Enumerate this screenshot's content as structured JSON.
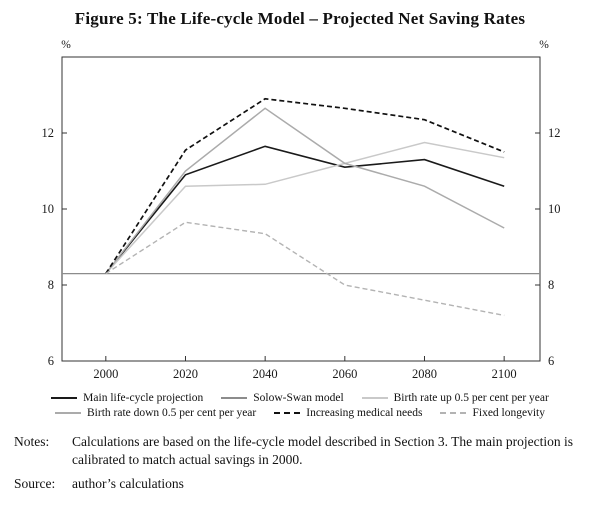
{
  "notes": {
    "label": "Notes:",
    "text": "Calculations are based on the life-cycle model described in Section 3. The main projection is calibrated to match actual savings in 2000."
  },
  "source": {
    "label": "Source:",
    "text": "author’s calculations"
  },
  "chart_data": {
    "type": "line",
    "title": "Figure 5: The Life-cycle Model – Projected Net Saving Rates",
    "unit": "%",
    "x": [
      2000,
      2020,
      2040,
      2060,
      2080,
      2100
    ],
    "xlim": [
      1989,
      2109
    ],
    "ylim": [
      6,
      14
    ],
    "yticks": [
      6,
      8,
      10,
      12
    ],
    "xticks": [
      2000,
      2020,
      2040,
      2060,
      2080,
      2100
    ],
    "grid": false,
    "legend_position": "below",
    "axis_color": "#333333",
    "series": [
      {
        "name": "Main life-cycle projection",
        "color": "#1a1a1a",
        "dash": "",
        "width": 1.6,
        "values": [
          8.3,
          10.9,
          11.65,
          11.1,
          11.3,
          10.6
        ]
      },
      {
        "name": "Solow-Swan model",
        "color": "#8c8c8c",
        "dash": "",
        "width": 1.3,
        "values": [
          8.3,
          8.3,
          8.3,
          8.3,
          8.3,
          8.3
        ],
        "spans_full_width": true
      },
      {
        "name": "Birth rate up 0.5 per cent per year",
        "color": "#c9c9c9",
        "dash": "",
        "width": 1.5,
        "values": [
          8.3,
          10.6,
          10.65,
          11.2,
          11.75,
          11.35
        ]
      },
      {
        "name": "Birth rate down 0.5 per cent per year",
        "color": "#ababab",
        "dash": "",
        "width": 1.5,
        "values": [
          8.3,
          11.0,
          12.65,
          11.2,
          10.6,
          9.5
        ]
      },
      {
        "name": "Increasing medical needs",
        "color": "#111111",
        "dash": "5,3",
        "width": 1.7,
        "values": [
          8.3,
          11.55,
          12.9,
          12.65,
          12.35,
          11.5
        ]
      },
      {
        "name": "Fixed longevity",
        "color": "#b3b3b3",
        "dash": "5,3",
        "width": 1.4,
        "values": [
          8.3,
          9.65,
          9.35,
          8.0,
          7.6,
          7.2
        ]
      }
    ],
    "legend_rows": [
      [
        0,
        1,
        2
      ],
      [
        3,
        4,
        5
      ]
    ]
  }
}
